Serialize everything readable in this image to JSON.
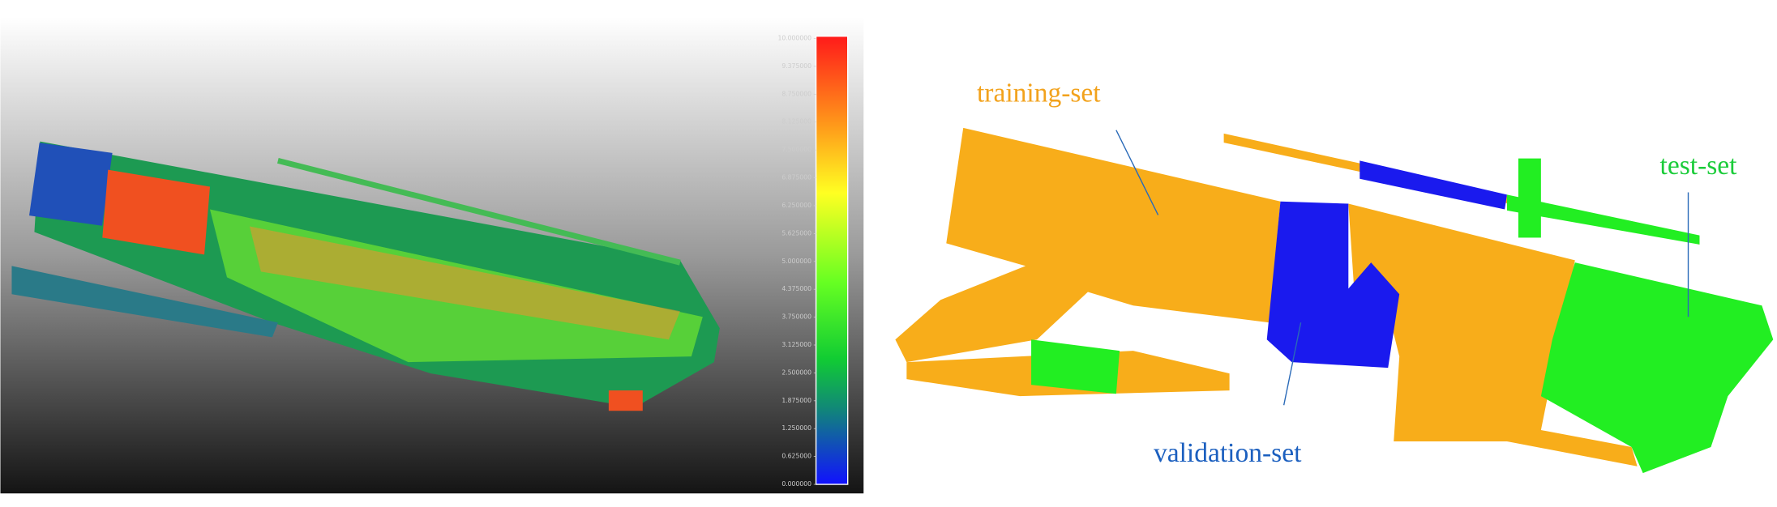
{
  "colorbar": {
    "ticks": [
      {
        "value": 0,
        "label": "0.000000"
      },
      {
        "value": 0.625,
        "label": "0.625000"
      },
      {
        "value": 1.25,
        "label": "1.250000"
      },
      {
        "value": 1.875,
        "label": "1.875000"
      },
      {
        "value": 2.5,
        "label": "2.500000"
      },
      {
        "value": 3.125,
        "label": "3.125000"
      },
      {
        "value": 3.75,
        "label": "3.750000"
      },
      {
        "value": 4.375,
        "label": "4.375000"
      },
      {
        "value": 5,
        "label": "5.000000"
      },
      {
        "value": 5.625,
        "label": "5.625000"
      },
      {
        "value": 6.25,
        "label": "6.250000"
      },
      {
        "value": 6.875,
        "label": "6.875000"
      },
      {
        "value": 7.5,
        "label": "7.500000"
      },
      {
        "value": 8.125,
        "label": "8.125000"
      },
      {
        "value": 8.75,
        "label": "8.750000"
      },
      {
        "value": 9.375,
        "label": "9.375000"
      },
      {
        "value": 10,
        "label": "10.000000"
      }
    ]
  },
  "split_map": {
    "labels": {
      "training": "training-set",
      "validation": "validation-set",
      "test": "test-set"
    }
  }
}
